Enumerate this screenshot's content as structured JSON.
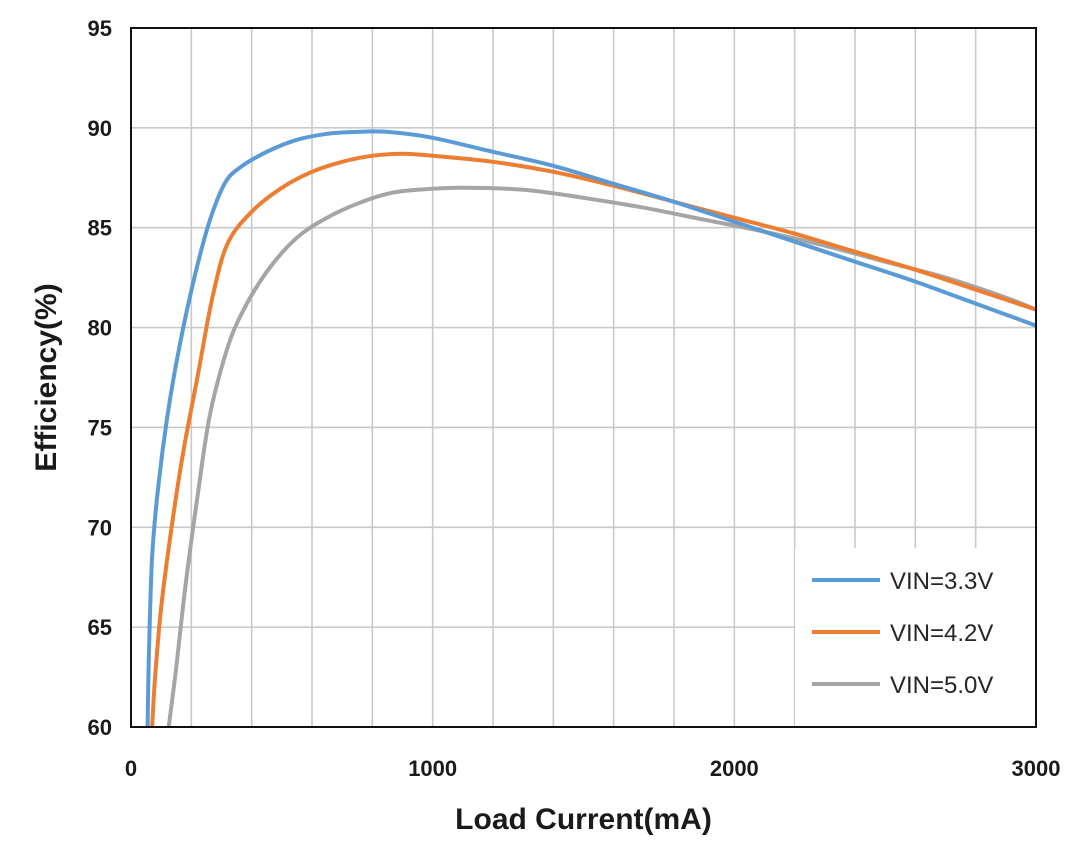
{
  "chart_data": {
    "type": "line",
    "title": "",
    "xlabel": "Load Current(mA)",
    "ylabel": "Efficiency(%)",
    "xlim": [
      0,
      3000
    ],
    "ylim": [
      60,
      95
    ],
    "x_ticks": [
      0,
      1000,
      2000,
      3000
    ],
    "x_tick_labels": [
      "0",
      "1000",
      "2000",
      "3000"
    ],
    "y_ticks": [
      60,
      65,
      70,
      75,
      80,
      85,
      90,
      95
    ],
    "y_tick_labels": [
      "60",
      "65",
      "70",
      "75",
      "80",
      "85",
      "90",
      "95"
    ],
    "x_grid_step": 200,
    "y_grid_step": 5,
    "grid": true,
    "legend_position": "bottom-right",
    "series": [
      {
        "name": "VIN=3.3V",
        "color": "#5b9bd5",
        "points": [
          [
            55,
            60
          ],
          [
            60,
            64
          ],
          [
            70,
            68.5
          ],
          [
            90,
            72
          ],
          [
            120,
            75.5
          ],
          [
            160,
            79
          ],
          [
            210,
            82.5
          ],
          [
            260,
            85.3
          ],
          [
            310,
            87.2
          ],
          [
            360,
            88
          ],
          [
            450,
            88.8
          ],
          [
            550,
            89.4
          ],
          [
            650,
            89.7
          ],
          [
            750,
            89.8
          ],
          [
            850,
            89.8
          ],
          [
            1000,
            89.5
          ],
          [
            1200,
            88.8
          ],
          [
            1400,
            88.1
          ],
          [
            1600,
            87.2
          ],
          [
            1800,
            86.3
          ],
          [
            2000,
            85.3
          ],
          [
            2200,
            84.3
          ],
          [
            2400,
            83.3
          ],
          [
            2600,
            82.3
          ],
          [
            2800,
            81.2
          ],
          [
            3000,
            80.1
          ]
        ]
      },
      {
        "name": "VIN=4.2V",
        "color": "#ed7d31",
        "points": [
          [
            70,
            60
          ],
          [
            80,
            62.5
          ],
          [
            100,
            66
          ],
          [
            130,
            69.5
          ],
          [
            170,
            73.5
          ],
          [
            220,
            77.5
          ],
          [
            270,
            81.5
          ],
          [
            320,
            84.2
          ],
          [
            400,
            85.8
          ],
          [
            500,
            87
          ],
          [
            600,
            87.8
          ],
          [
            700,
            88.3
          ],
          [
            800,
            88.6
          ],
          [
            900,
            88.7
          ],
          [
            1000,
            88.6
          ],
          [
            1200,
            88.3
          ],
          [
            1400,
            87.8
          ],
          [
            1600,
            87.1
          ],
          [
            1800,
            86.3
          ],
          [
            2000,
            85.5
          ],
          [
            2200,
            84.7
          ],
          [
            2400,
            83.8
          ],
          [
            2600,
            82.9
          ],
          [
            2800,
            81.9
          ],
          [
            3000,
            80.9
          ]
        ]
      },
      {
        "name": "VIN=5.0V",
        "color": "#a5a5a5",
        "points": [
          [
            125,
            60
          ],
          [
            150,
            63
          ],
          [
            180,
            67
          ],
          [
            220,
            71.5
          ],
          [
            260,
            75.5
          ],
          [
            310,
            78.5
          ],
          [
            360,
            80.5
          ],
          [
            450,
            82.8
          ],
          [
            550,
            84.5
          ],
          [
            650,
            85.5
          ],
          [
            750,
            86.2
          ],
          [
            850,
            86.7
          ],
          [
            950,
            86.9
          ],
          [
            1100,
            87
          ],
          [
            1300,
            86.9
          ],
          [
            1500,
            86.5
          ],
          [
            1700,
            86
          ],
          [
            1900,
            85.4
          ],
          [
            2100,
            84.8
          ],
          [
            2300,
            84.1
          ],
          [
            2500,
            83.3
          ],
          [
            2700,
            82.5
          ],
          [
            2900,
            81.5
          ],
          [
            3000,
            80.9
          ]
        ]
      }
    ]
  }
}
